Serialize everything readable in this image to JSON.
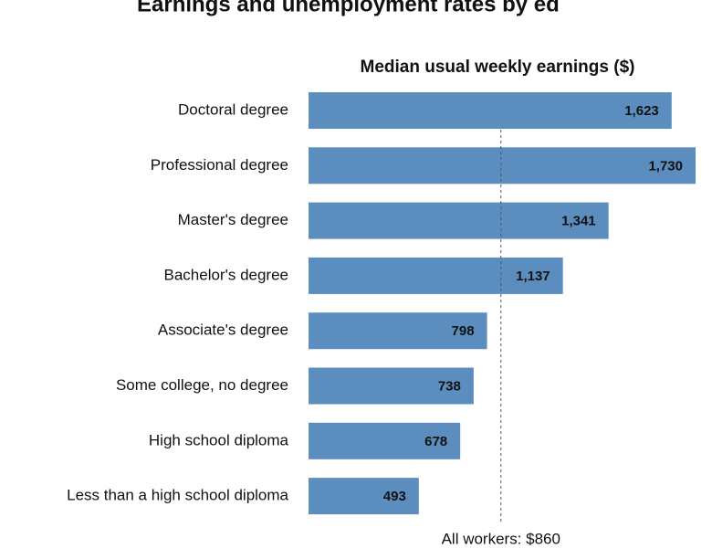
{
  "chart_data": {
    "type": "hbar",
    "title": "Earnings and unemployment rates by ed",
    "subtitle": "Median usual weekly earnings ($)",
    "categories": [
      "Doctoral degree",
      "Professional degree",
      "Master's degree",
      "Bachelor's degree",
      "Associate's degree",
      "Some college, no degree",
      "High school diploma",
      "Less than a high school diploma"
    ],
    "values": [
      1623,
      1730,
      1341,
      1137,
      798,
      738,
      678,
      493
    ],
    "value_labels": [
      "1,623",
      "1,730",
      "1,341",
      "1,137",
      "798",
      "738",
      "678",
      "493"
    ],
    "color": "#5b8ebf",
    "xlim": [
      0,
      1730
    ],
    "reference": {
      "value": 860,
      "label": "All workers: $860"
    }
  }
}
